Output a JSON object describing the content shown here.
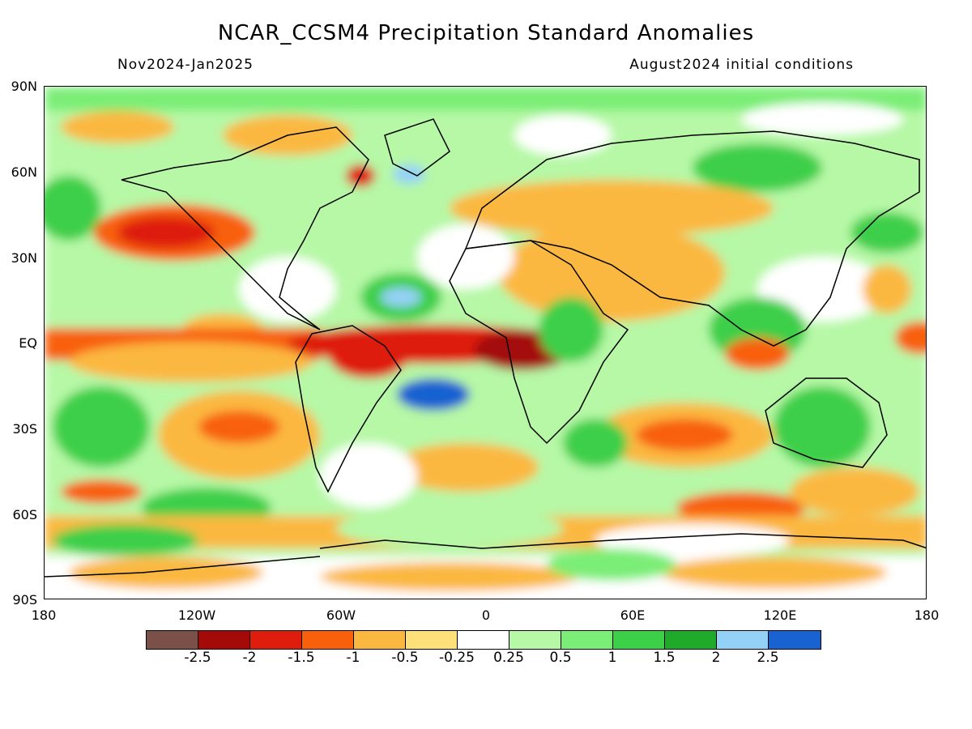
{
  "header": {
    "title": "NCAR_CCSM4 Precipitation Standard Anomalies",
    "period": "Nov2024-Jan2025",
    "init": "August2024 initial conditions"
  },
  "axes": {
    "lat_labels": [
      "90N",
      "60N",
      "30N",
      "EQ",
      "30S",
      "60S",
      "90S"
    ],
    "lon_labels": [
      "180",
      "120W",
      "60W",
      "0",
      "60E",
      "120E",
      "180"
    ]
  },
  "colorbar": {
    "colors": [
      "#7a5048",
      "#a30a08",
      "#de1d0c",
      "#f8600c",
      "#fbb840",
      "#fde07a",
      "#ffffff",
      "#b6f8a6",
      "#7aee76",
      "#3ccf48",
      "#1faa2a",
      "#94d1f7",
      "#1962d1"
    ],
    "labels": [
      "-2.5",
      "-2",
      "-1.5",
      "-1",
      "-0.5",
      "-0.25",
      "0.25",
      "0.5",
      "1",
      "1.5",
      "2",
      "2.5"
    ]
  }
}
